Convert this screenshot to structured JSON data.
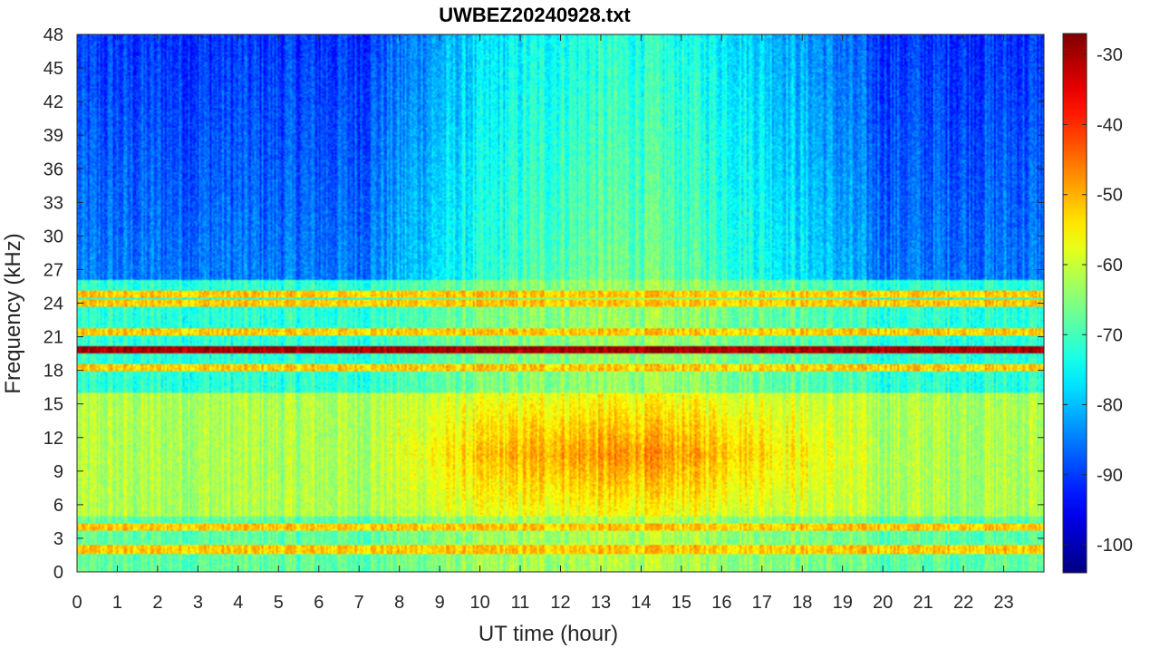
{
  "chart_data": {
    "type": "heatmap",
    "title": "UWBEZ20240928.txt",
    "xlabel": "UT time (hour)",
    "ylabel": "Frequency (kHz)",
    "xlim": [
      0,
      24
    ],
    "ylim": [
      0,
      48
    ],
    "x_ticks": [
      "0",
      "1",
      "2",
      "3",
      "4",
      "5",
      "6",
      "7",
      "8",
      "9",
      "10",
      "11",
      "12",
      "13",
      "14",
      "15",
      "16",
      "17",
      "18",
      "19",
      "20",
      "21",
      "22",
      "23"
    ],
    "y_ticks": [
      "0",
      "3",
      "6",
      "9",
      "12",
      "15",
      "18",
      "21",
      "24",
      "27",
      "30",
      "33",
      "36",
      "39",
      "42",
      "45",
      "48"
    ],
    "colorbar": {
      "colormap": "jet",
      "clim": [
        -104,
        -27
      ],
      "ticks": [
        "-100",
        "-90",
        "-80",
        "-70",
        "-60",
        "-50",
        "-40",
        "-30"
      ]
    },
    "features": {
      "persistent_lines_khz": [
        19.8,
        18.2,
        21.4,
        24.0,
        24.8,
        4.0,
        2.0
      ],
      "strongest_line_khz": 19.8,
      "daytime_enhancement": {
        "hours": [
          8,
          19
        ],
        "freq_khz": [
          5,
          16
        ],
        "level_db": -50
      },
      "background_high_freq_db": -85,
      "background_low_freq_db": -60
    }
  }
}
